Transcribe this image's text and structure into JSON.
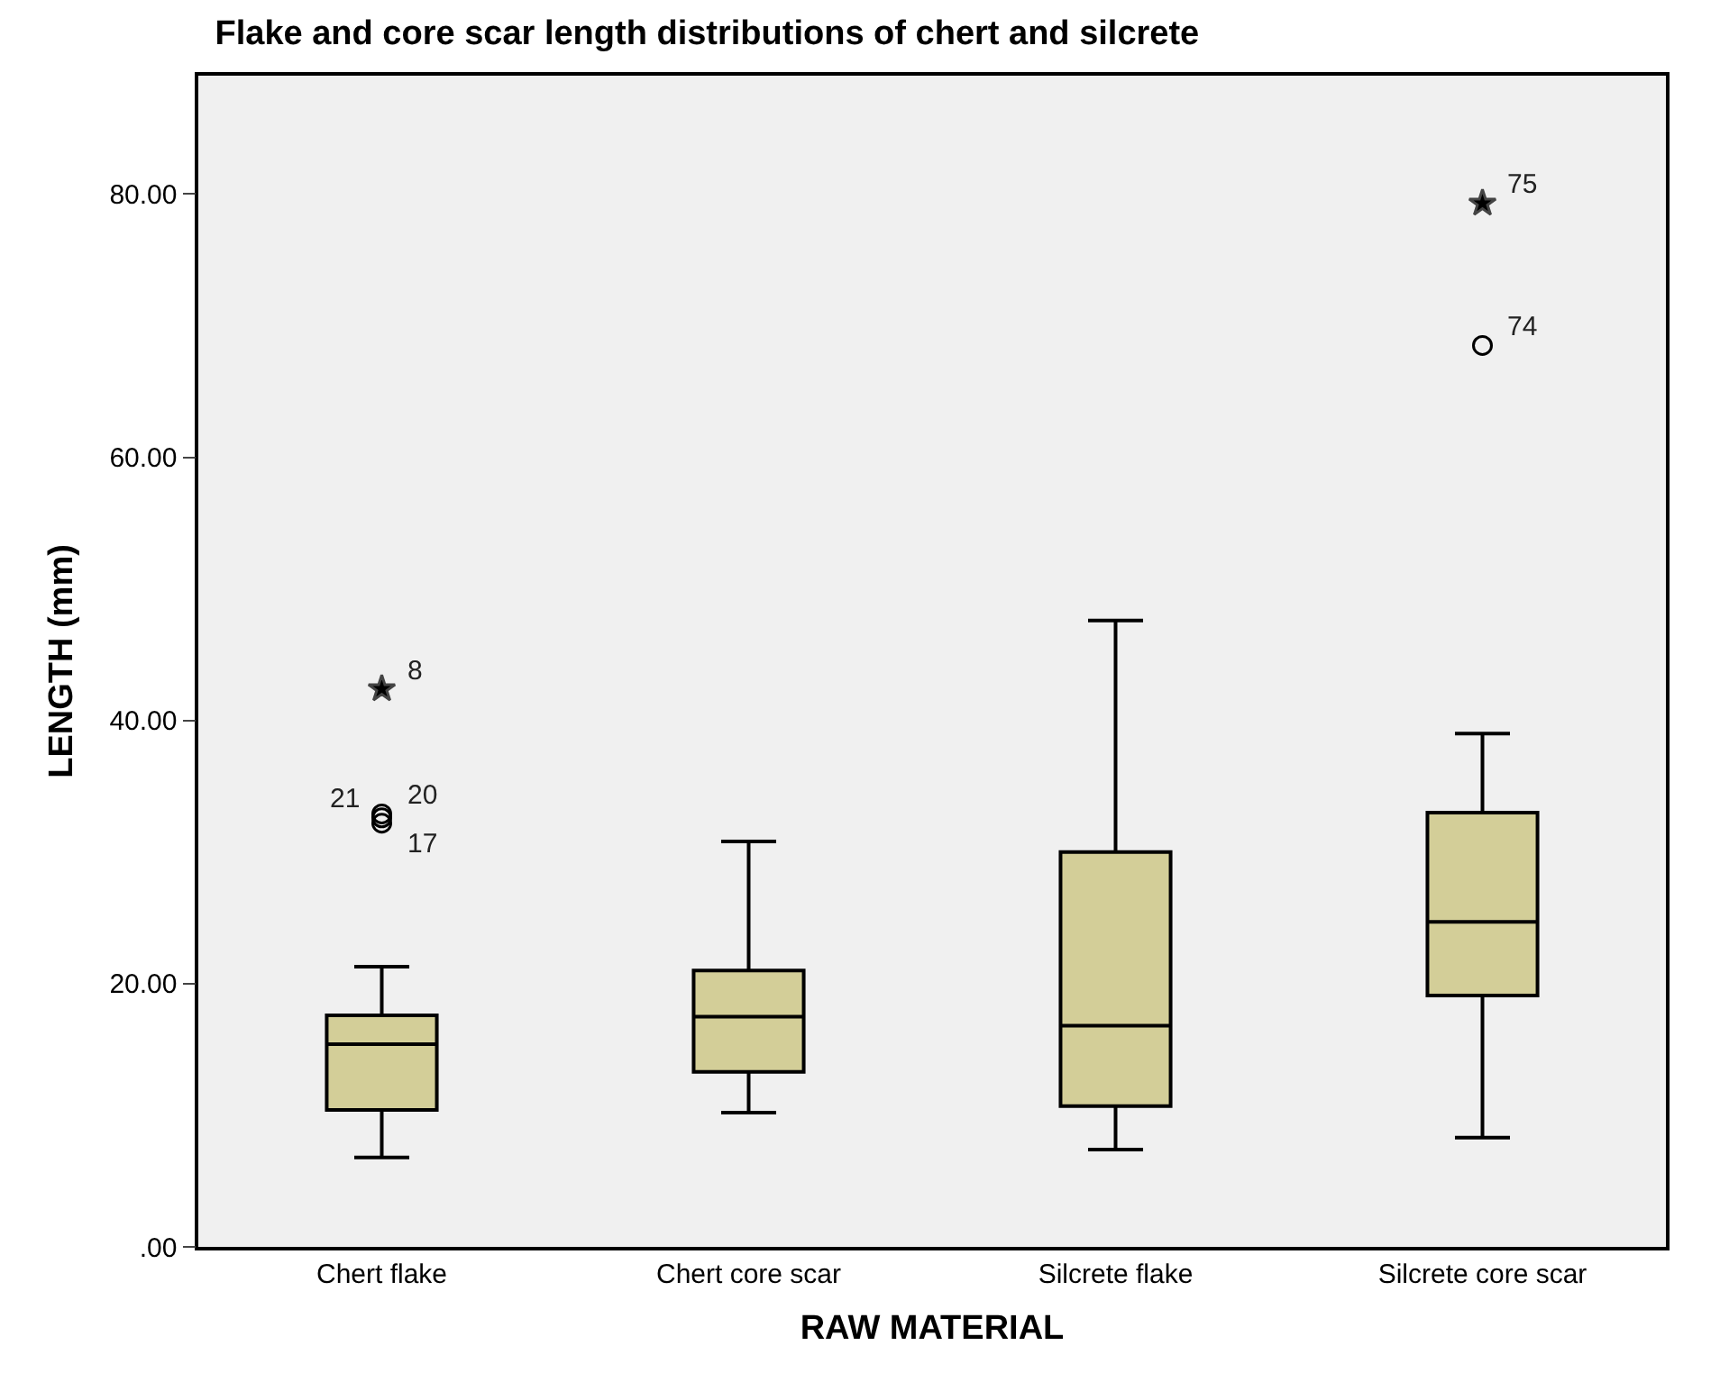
{
  "chart_data": {
    "type": "box",
    "title": "Flake and core scar length distributions of chert and silcrete",
    "xlabel": "RAW MATERIAL",
    "ylabel": "LENGTH (mm)",
    "categories": [
      "Chert flake",
      "Chert core scar",
      "Silcrete flake",
      "Silcrete core scar"
    ],
    "series": [
      {
        "color": "#d3ce98",
        "boxes": [
          {
            "low": 6.8,
            "q1": 10.4,
            "median": 15.4,
            "q3": 17.6,
            "high": 21.3
          },
          {
            "low": 10.2,
            "q1": 13.3,
            "median": 17.5,
            "q3": 21.0,
            "high": 30.8
          },
          {
            "low": 7.4,
            "q1": 10.7,
            "median": 16.8,
            "q3": 30.0,
            "high": 47.6
          },
          {
            "low": 8.3,
            "q1": 19.1,
            "median": 24.7,
            "q3": 33.0,
            "high": 39.0
          }
        ]
      },
      {
        "type": "scatter",
        "marker": "circle",
        "color": "#000000",
        "x": [
          "Chert flake",
          "Chert flake",
          "Chert flake",
          "Silcrete core scar"
        ],
        "values": [
          32.9,
          32.6,
          32.2,
          68.5
        ]
      },
      {
        "type": "scatter",
        "marker": "star",
        "color": "#000000",
        "x": [
          "Chert flake",
          "Silcrete core scar"
        ],
        "values": [
          42.4,
          79.3
        ]
      }
    ],
    "annotations": [
      {
        "text": "8",
        "x": "Chert flake",
        "y": 42.4
      },
      {
        "text": "20",
        "x": "Chert flake",
        "y": 32.9
      },
      {
        "text": "21",
        "x": "Chert flake",
        "y": 32.6
      },
      {
        "text": "17",
        "x": "Chert flake",
        "y": 32.2
      },
      {
        "text": "74",
        "x": "Silcrete core scar",
        "y": 68.5
      },
      {
        "text": "75",
        "x": "Silcrete core scar",
        "y": 79.3
      }
    ],
    "ylim": [
      0,
      89
    ],
    "yticks": [
      {
        "value": 0,
        "label": ".00"
      },
      {
        "value": 20,
        "label": "20.00"
      },
      {
        "value": 40,
        "label": "40.00"
      },
      {
        "value": 60,
        "label": "60.00"
      },
      {
        "value": 80,
        "label": "80.00"
      }
    ],
    "grid": false
  }
}
